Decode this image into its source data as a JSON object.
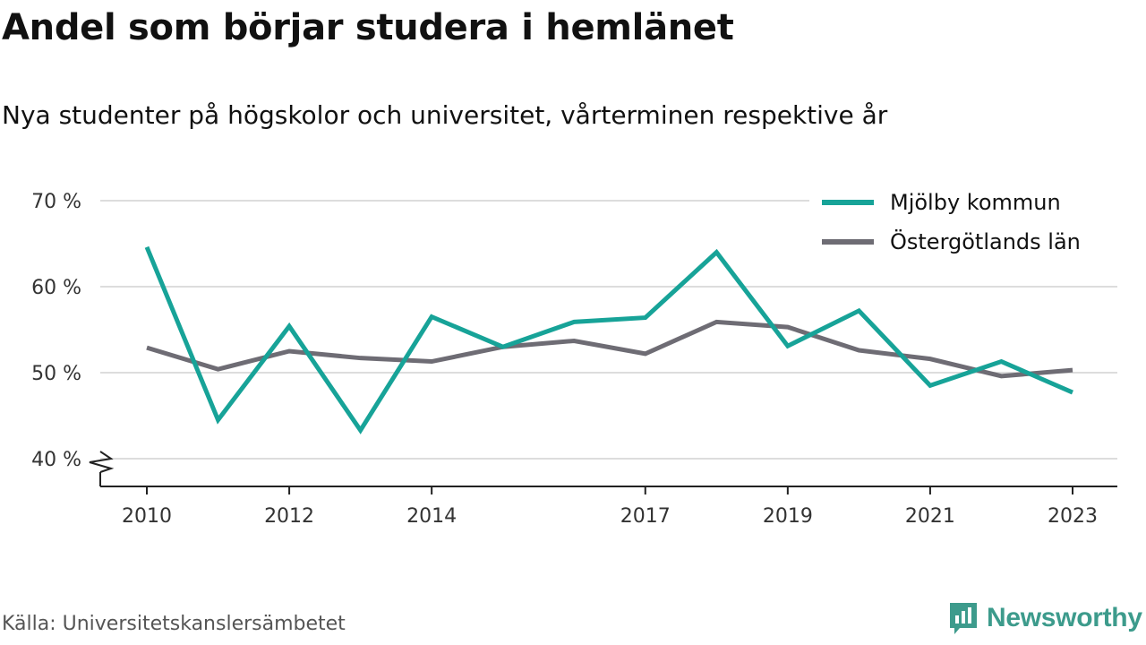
{
  "title": "Andel som börjar studera i hemlänet",
  "subtitle": "Nya studenter på högskolor och universitet, vårterminen respektive år",
  "source": "Källa: Universitetskanslersämbetet",
  "brand": {
    "name": "Newsworthy",
    "icon": "newsworthy-logo-icon"
  },
  "colors": {
    "series_1": "#17a398",
    "series_2": "#6e6c74",
    "grid": "#dddddd",
    "axis": "#222222"
  },
  "chart_data": {
    "type": "line",
    "x": [
      2010,
      2011,
      2012,
      2013,
      2014,
      2015,
      2016,
      2017,
      2018,
      2019,
      2020,
      2021,
      2022,
      2023
    ],
    "x_ticks": [
      "2010",
      "2012",
      "2014",
      "2017",
      "2019",
      "2021",
      "2023"
    ],
    "ylim": [
      40,
      70
    ],
    "y_ticks": [
      "40 %",
      "50 %",
      "60 %",
      "70 %"
    ],
    "y_tick_values": [
      40,
      50,
      60,
      70
    ],
    "grid": true,
    "axis_break": true,
    "legend_position": "top-right",
    "series": [
      {
        "name": "Mjölby kommun",
        "color": "#17a398",
        "values": [
          64.6,
          44.5,
          55.4,
          43.3,
          56.5,
          53.0,
          55.9,
          56.4,
          64.0,
          53.1,
          57.2,
          48.5,
          51.3,
          47.7
        ]
      },
      {
        "name": "Östergötlands län",
        "color": "#6e6c74",
        "values": [
          52.9,
          50.4,
          52.5,
          51.7,
          51.3,
          53.0,
          53.7,
          52.2,
          55.9,
          55.3,
          52.6,
          51.6,
          49.6,
          50.3
        ]
      }
    ]
  }
}
